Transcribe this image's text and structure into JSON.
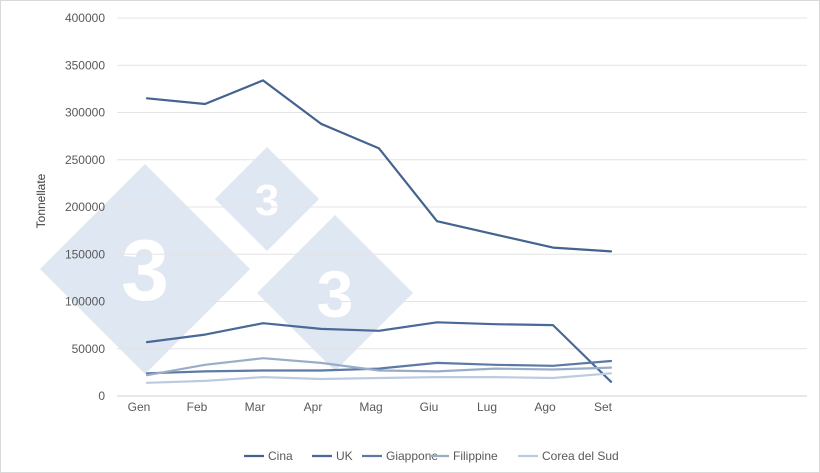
{
  "chart_data": {
    "type": "line",
    "title": "",
    "xlabel": "",
    "ylabel": "Tonnellate",
    "categories": [
      "Gen",
      "Feb",
      "Mar",
      "Apr",
      "Mag",
      "Giu",
      "Lug",
      "Ago",
      "Set"
    ],
    "ylim": [
      0,
      400000
    ],
    "yticks": [
      "0",
      "50000",
      "100000",
      "150000",
      "200000",
      "250000",
      "300000",
      "350000",
      "400000"
    ],
    "grid": "horizontal",
    "legend_position": "bottom",
    "series": [
      {
        "name": "Cina",
        "color": "#44638f",
        "values": [
          315000,
          309000,
          334000,
          288000,
          262000,
          185000,
          171000,
          157000,
          153000
        ]
      },
      {
        "name": "UK",
        "color": "#4a6996",
        "values": [
          57000,
          65000,
          77000,
          71000,
          69000,
          78000,
          76000,
          75000,
          15000
        ]
      },
      {
        "name": "Giappone",
        "color": "#5c7aa3",
        "values": [
          24000,
          26000,
          27000,
          27000,
          29000,
          35000,
          33000,
          32000,
          37000
        ]
      },
      {
        "name": "Filippine",
        "color": "#9aadc8",
        "values": [
          22000,
          33000,
          40000,
          35000,
          27000,
          26000,
          29000,
          28000,
          30000
        ]
      },
      {
        "name": "Corea del Sud",
        "color": "#bccbe0",
        "values": [
          14000,
          16000,
          20000,
          18000,
          19000,
          20000,
          20000,
          19000,
          24000
        ]
      }
    ]
  },
  "watermark": {
    "text": "333",
    "color": "#dfe7f3"
  }
}
